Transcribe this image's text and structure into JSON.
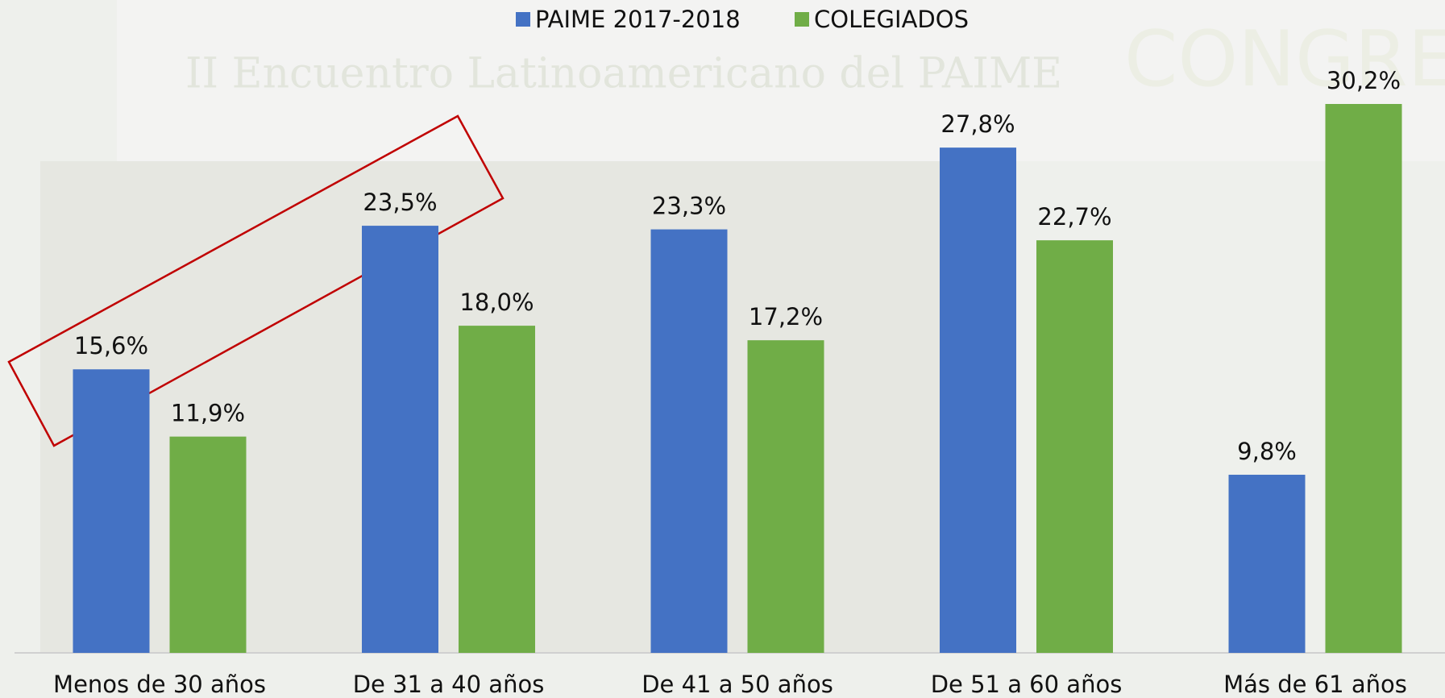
{
  "background_texts": {
    "event": "II Encuentro Latinoamericano del PAIME",
    "congress": "CONGRESO"
  },
  "chart_data": {
    "type": "bar",
    "categories": [
      "Menos de 30 años",
      "De 31 a 40 años",
      "De 41 a 50 años",
      "De 51 a 60 años",
      "Más de 61 años"
    ],
    "series": [
      {
        "name": "PAIME 2017-2018",
        "color": "#4472c4",
        "values": [
          15.6,
          23.5,
          23.3,
          27.8,
          9.8
        ],
        "value_labels": [
          "15,6%",
          "23,5%",
          "23,3%",
          "27,8%",
          "9,8%"
        ]
      },
      {
        "name": "COLEGIADOS",
        "color": "#70ad47",
        "values": [
          11.9,
          18.0,
          17.2,
          22.7,
          30.2
        ],
        "value_labels": [
          "11,9%",
          "18,0%",
          "17,2%",
          "22,7%",
          "30,2%"
        ]
      }
    ],
    "legend": "top"
  }
}
